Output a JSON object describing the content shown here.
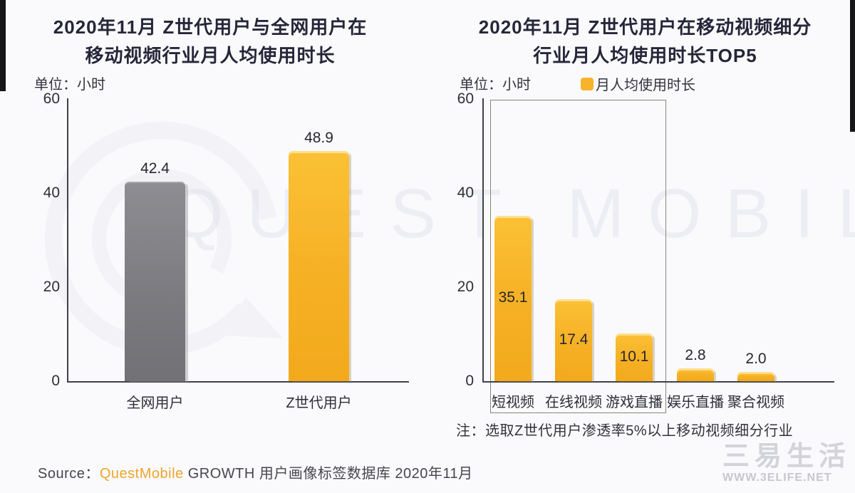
{
  "page": {
    "background": "#fafafc",
    "edge_strip_color": "#161618"
  },
  "watermarks": {
    "brand_text": "QUEST MOBILE",
    "footer_logo_text": "三易生活",
    "footer_logo_url": "WWW.3ELIFE.NET"
  },
  "source_line": {
    "prefix": "Source：",
    "brand": "QuestMobile",
    "suffix": " GROWTH 用户画像标签数据库 2020年11月",
    "brand_color": "#f0a42d"
  },
  "chart_data": [
    {
      "type": "bar",
      "title": "2020年11月 Z世代用户与全网用户在移动视频行业月人均使用时长",
      "title_lines": [
        "2020年11月 Z世代用户与全网用户在",
        "移动视频行业月人均使用时长"
      ],
      "unit_label": "单位：小时",
      "xlabel": "",
      "ylabel": "小时",
      "ylim": [
        0,
        60
      ],
      "yticks": [
        60,
        40,
        20,
        0
      ],
      "grid": false,
      "legend": null,
      "categories": [
        "全网用户",
        "Z世代用户"
      ],
      "values": [
        42.4,
        48.9
      ],
      "value_labels": [
        "42.4",
        "48.9"
      ],
      "value_label_placement": [
        "above",
        "above"
      ],
      "bar_colors": [
        "#7d7d82",
        "#f7b42a"
      ]
    },
    {
      "type": "bar",
      "title": "2020年11月 Z世代用户在移动视频细分行业月人均使用时长TOP5",
      "title_lines": [
        "2020年11月 Z世代用户在移动视频细分",
        "行业月人均使用时长TOP5"
      ],
      "unit_label": "单位：小时",
      "xlabel": "",
      "ylabel": "小时",
      "ylim": [
        0,
        60
      ],
      "yticks": [
        60,
        40,
        20,
        0
      ],
      "grid": false,
      "legend": {
        "label": "月人均使用时长",
        "color": "#f7b42a",
        "position": "top"
      },
      "categories": [
        "短视频",
        "在线视频",
        "游戏直播",
        "娱乐直播",
        "聚合视频"
      ],
      "values": [
        35.1,
        17.4,
        10.1,
        2.8,
        2.0
      ],
      "value_labels": [
        "35.1",
        "17.4",
        "10.1",
        "2.8",
        "2.0"
      ],
      "value_label_placement": [
        "inside",
        "inside",
        "inside",
        "above",
        "above"
      ],
      "bar_colors": [
        "#f7b42a",
        "#f7b42a",
        "#f7b42a",
        "#f7b42a",
        "#f7b42a"
      ],
      "highlight_box": {
        "categories": [
          "短视频",
          "在线视频",
          "游戏直播"
        ],
        "border_color": "#8b8478"
      },
      "note": "注：选取Z世代用户渗透率5%以上移动视频细分行业"
    }
  ]
}
